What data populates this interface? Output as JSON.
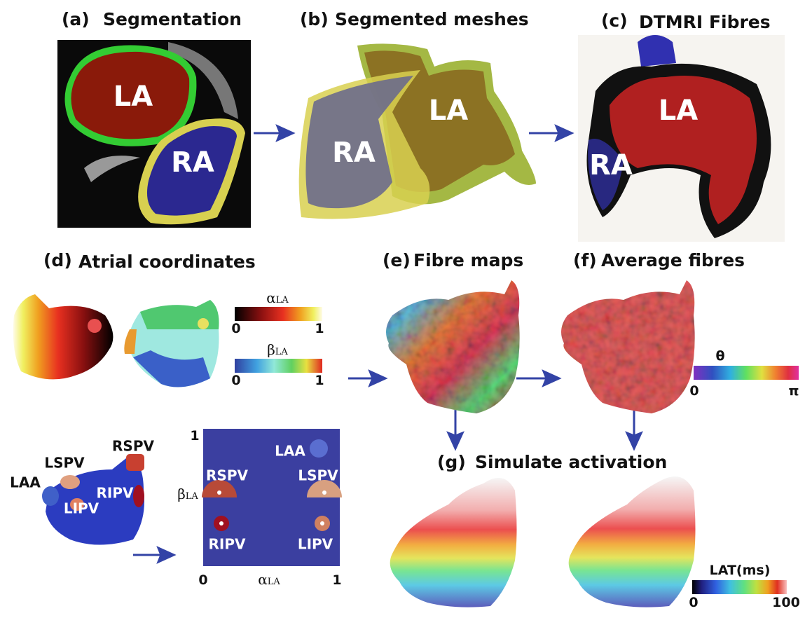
{
  "panels": [
    {
      "label": "(a)",
      "title": "Segmentation"
    },
    {
      "label": "(b)",
      "title": "Segmented meshes"
    },
    {
      "label": "(c)",
      "title": "DTMRI Fibres"
    },
    {
      "label": "(d)",
      "title": "Atrial coordinates"
    },
    {
      "label": "(e)",
      "title": "Fibre maps"
    },
    {
      "label": "(f)",
      "title": "Average fibres"
    },
    {
      "label": "(g)",
      "title": "Simulate activation"
    }
  ],
  "image_labels": {
    "a": [
      "LA",
      "RA"
    ],
    "b": [
      "LA",
      "RA"
    ],
    "c": [
      "LA",
      "RA"
    ]
  },
  "colorbars": {
    "alpha": {
      "symbol": "α",
      "sub": "LA",
      "min": "0",
      "max": "1"
    },
    "beta": {
      "symbol": "β",
      "sub": "LA",
      "min": "0",
      "max": "1"
    },
    "theta": {
      "symbol": "θ",
      "min": "0",
      "max": "π"
    },
    "lat": {
      "title": "LAT(ms)",
      "min": "0",
      "max": "100"
    }
  },
  "mesh_veins": [
    "RSPV",
    "LSPV",
    "LAA",
    "RIPV",
    "LIPV"
  ],
  "map": {
    "y_max": "1",
    "origin": "0",
    "x_max": "1",
    "x_label": {
      "symbol": "α",
      "sub": "LA"
    },
    "y_label": {
      "symbol": "β",
      "sub": "LA"
    },
    "veins": [
      "LAA",
      "RSPV",
      "LSPV",
      "RIPV",
      "LIPV"
    ]
  }
}
